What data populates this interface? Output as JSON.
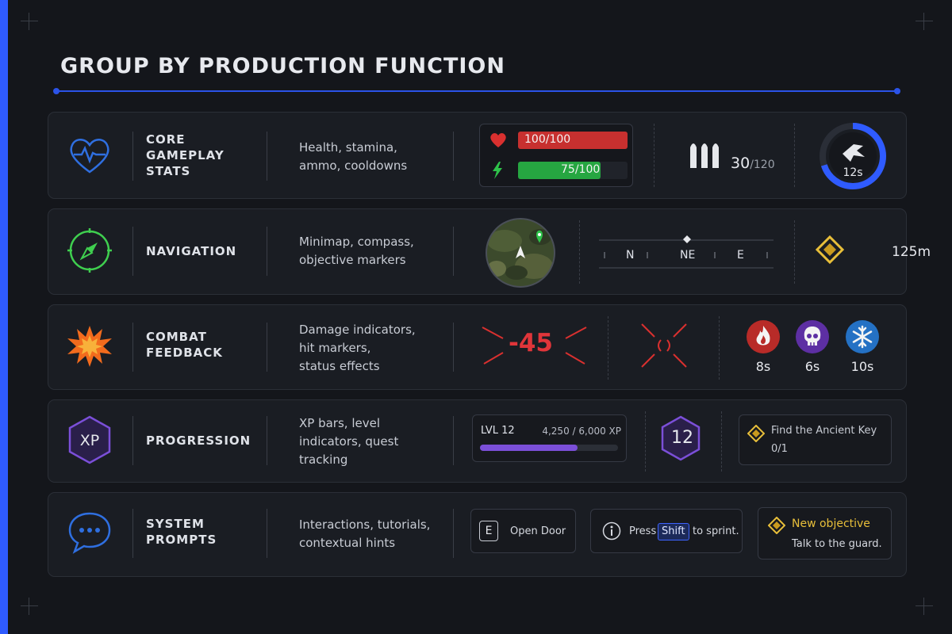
{
  "title": "GROUP BY PRODUCTION FUNCTION",
  "colors": {
    "accent_blue": "#2f5bff",
    "health_red": "#d9302f",
    "stamina_green": "#26a641",
    "nav_green": "#3fcf4f",
    "combat_orange": "#f26b1d",
    "xp_purple": "#7b4fd8",
    "prompt_blue": "#2f6fe0",
    "objective_gold": "#e8bf3a"
  },
  "rows": [
    {
      "icon": "heart-pulse-icon",
      "label_lines": [
        "CORE",
        "GAMEPLAY",
        "STATS"
      ],
      "description_lines": [
        "Health, stamina,",
        "ammo, cooldowns"
      ],
      "health_text": "100/100",
      "health_fraction": 1.0,
      "stamina_text": "75/100",
      "stamina_fraction": 0.75,
      "ammo_current": "30",
      "ammo_max": "/120",
      "cooldown_text": "12s",
      "cooldown_fraction": 0.7
    },
    {
      "icon": "compass-icon",
      "label_lines": [
        "NAVIGATION"
      ],
      "description_lines": [
        "Minimap, compass,",
        "objective markers"
      ],
      "compass_letters": [
        "N",
        "NE",
        "E"
      ],
      "distance_text": "125m"
    },
    {
      "icon": "explosion-icon",
      "label_lines": [
        "COMBAT",
        "FEEDBACK"
      ],
      "description_lines": [
        "Damage indicators,",
        "hit markers,",
        "status effects"
      ],
      "damage_text": "-45",
      "status_effects": [
        {
          "icon": "fire-icon",
          "time": "8s",
          "color": "#c9302c"
        },
        {
          "icon": "skull-icon",
          "time": "6s",
          "color": "#6b35b8"
        },
        {
          "icon": "snowflake-icon",
          "time": "10s",
          "color": "#2a7fd4"
        }
      ]
    },
    {
      "icon": "xp-hexagon-icon",
      "icon_text": "XP",
      "label_lines": [
        "PROGRESSION"
      ],
      "description_lines": [
        "XP bars, level",
        "indicators, quest",
        "tracking"
      ],
      "level_label": "LVL 12",
      "xp_text": "4,250 / 6,000 XP",
      "xp_fraction": 0.708,
      "level_badge": "12",
      "quest_title": "Find the Ancient Key",
      "quest_progress": "0/1"
    },
    {
      "icon": "chat-bubble-icon",
      "label_lines": [
        "SYSTEM",
        "PROMPTS"
      ],
      "description_lines": [
        "Interactions, tutorials,",
        "contextual hints"
      ],
      "interact_key": "E",
      "interact_text": "Open Door",
      "hint_prefix": "Press",
      "hint_key": "Shift",
      "hint_suffix": "to sprint.",
      "objective_title": "New objective",
      "objective_text": "Talk to the guard."
    }
  ]
}
